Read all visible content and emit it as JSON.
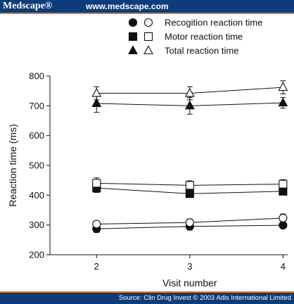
{
  "header": {
    "brand": "Medscape®",
    "site": "www.medscape.com"
  },
  "footer": {
    "source": "Source: Clin Drug Invest © 2003 Adis International Limited"
  },
  "colors": {
    "bar": "#0d3c7a",
    "accent": "#e87a1e"
  },
  "chart_data": {
    "type": "line",
    "title": "",
    "xlabel": "Visit number",
    "ylabel": "Reaction time (ms)",
    "x": [
      2,
      3,
      4
    ],
    "xlim": [
      1.5,
      4.05
    ],
    "ylim": [
      200,
      800
    ],
    "yticks": [
      200,
      300,
      400,
      500,
      600,
      700,
      800
    ],
    "grid": false,
    "legend_position": "top-right",
    "legend": [
      {
        "label": "Recogition reaction time",
        "marker": "circle"
      },
      {
        "label": "Motor reaction time",
        "marker": "square"
      },
      {
        "label": "Total reaction time",
        "marker": "triangle"
      }
    ],
    "series": [
      {
        "marker": "circle",
        "filled": true,
        "values": [
          287,
          295,
          299
        ],
        "error": [
          12,
          12,
          8
        ]
      },
      {
        "marker": "circle",
        "filled": false,
        "values": [
          303,
          308,
          323
        ],
        "error": [
          10,
          12,
          14
        ]
      },
      {
        "marker": "square",
        "filled": true,
        "values": [
          424,
          405,
          413
        ],
        "error": [
          15,
          10,
          12
        ]
      },
      {
        "marker": "square",
        "filled": false,
        "values": [
          440,
          433,
          437
        ],
        "error": [
          18,
          15,
          15
        ]
      },
      {
        "marker": "triangle",
        "filled": true,
        "values": [
          708,
          700,
          710
        ],
        "error": [
          30,
          28,
          18
        ]
      },
      {
        "marker": "triangle",
        "filled": false,
        "values": [
          742,
          742,
          762
        ],
        "error": [
          22,
          22,
          22
        ]
      }
    ]
  }
}
